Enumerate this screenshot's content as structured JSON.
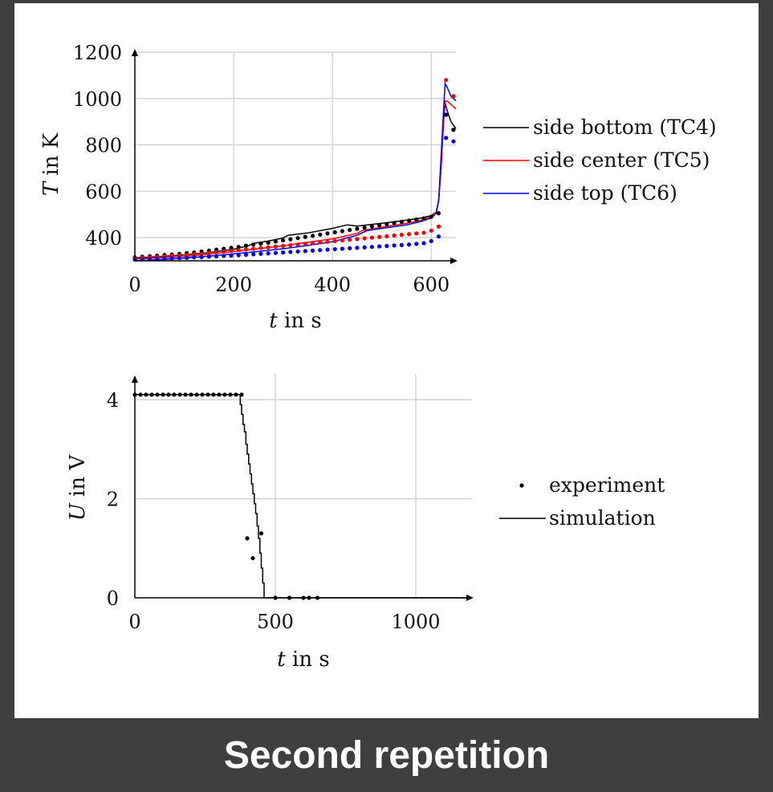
{
  "caption": "Second repetition",
  "chart_data": [
    {
      "type": "line",
      "xlabel_var": "t",
      "xlabel_rest": " in s",
      "ylabel_var": "T",
      "ylabel_rest": " in K",
      "xlim": [
        0,
        650
      ],
      "ylim": [
        300,
        1200
      ],
      "xticks": [
        0,
        200,
        400,
        600
      ],
      "yticks": [
        400,
        600,
        800,
        1000,
        1200
      ],
      "grid": true,
      "legend_position": "right",
      "series": [
        {
          "name": "side bottom (TC4)",
          "color": "#000000",
          "x": [
            0,
            50,
            100,
            150,
            200,
            230,
            240,
            270,
            300,
            310,
            350,
            400,
            430,
            450,
            500,
            550,
            580,
            600,
            610,
            615,
            620,
            625,
            628,
            632,
            640,
            650
          ],
          "y": [
            312,
            318,
            325,
            335,
            350,
            365,
            375,
            385,
            398,
            410,
            420,
            440,
            455,
            450,
            462,
            475,
            485,
            495,
            510,
            560,
            700,
            900,
            980,
            950,
            900,
            870
          ]
        },
        {
          "name": "side center (TC5)",
          "color": "#ff0000",
          "x": [
            0,
            50,
            100,
            150,
            200,
            250,
            300,
            350,
            400,
            450,
            460,
            500,
            550,
            580,
            600,
            610,
            615,
            620,
            625,
            628,
            632,
            640,
            650
          ],
          "y": [
            308,
            312,
            318,
            328,
            340,
            352,
            365,
            380,
            395,
            418,
            430,
            445,
            462,
            475,
            490,
            510,
            560,
            700,
            900,
            990,
            990,
            975,
            955
          ]
        },
        {
          "name": "side top (TC6)",
          "color": "#0000ff",
          "x": [
            0,
            50,
            100,
            150,
            200,
            250,
            300,
            350,
            400,
            450,
            470,
            500,
            550,
            580,
            600,
            610,
            615,
            620,
            625,
            628,
            632,
            640,
            650
          ],
          "y": [
            300,
            305,
            311,
            320,
            330,
            340,
            352,
            366,
            382,
            410,
            430,
            440,
            455,
            470,
            485,
            505,
            560,
            750,
            950,
            1065,
            1050,
            1010,
            990
          ]
        }
      ],
      "points": [
        {
          "name": "side bottom (TC4)",
          "color": "#000000",
          "x": [
            0,
            15,
            30,
            45,
            60,
            75,
            90,
            105,
            120,
            135,
            150,
            165,
            180,
            195,
            210,
            225,
            240,
            255,
            270,
            285,
            300,
            315,
            330,
            345,
            360,
            375,
            390,
            405,
            420,
            435,
            450,
            465,
            480,
            495,
            510,
            525,
            540,
            555,
            570,
            585,
            600,
            615,
            630,
            645
          ],
          "y": [
            315,
            318,
            320,
            322,
            325,
            327,
            330,
            333,
            336,
            340,
            344,
            348,
            352,
            356,
            360,
            365,
            370,
            374,
            378,
            383,
            388,
            393,
            398,
            403,
            408,
            413,
            418,
            423,
            428,
            433,
            438,
            443,
            448,
            453,
            458,
            463,
            468,
            473,
            478,
            483,
            490,
            505,
            930,
            865
          ]
        },
        {
          "name": "side center (TC5)",
          "color": "#ff0000",
          "x": [
            0,
            15,
            30,
            45,
            60,
            75,
            90,
            105,
            120,
            135,
            150,
            165,
            180,
            195,
            210,
            225,
            240,
            255,
            270,
            285,
            300,
            315,
            330,
            345,
            360,
            375,
            390,
            405,
            420,
            435,
            450,
            465,
            480,
            495,
            510,
            525,
            540,
            555,
            570,
            585,
            600,
            615,
            630,
            645
          ],
          "y": [
            312,
            314,
            316,
            318,
            320,
            322,
            324,
            326,
            328,
            331,
            334,
            337,
            340,
            343,
            346,
            349,
            352,
            355,
            358,
            361,
            364,
            367,
            370,
            373,
            376,
            379,
            382,
            385,
            388,
            391,
            394,
            397,
            400,
            403,
            406,
            409,
            412,
            415,
            418,
            421,
            430,
            448,
            1080,
            1010
          ]
        },
        {
          "name": "side top (TC6)",
          "color": "#0000ff",
          "x": [
            0,
            15,
            30,
            45,
            60,
            75,
            90,
            105,
            120,
            135,
            150,
            165,
            180,
            195,
            210,
            225,
            240,
            255,
            270,
            285,
            300,
            315,
            330,
            345,
            360,
            375,
            390,
            405,
            420,
            435,
            450,
            465,
            480,
            495,
            510,
            525,
            540,
            555,
            570,
            585,
            600,
            615,
            630,
            645
          ],
          "y": [
            305,
            306,
            307,
            308,
            310,
            311,
            312,
            313,
            315,
            316,
            318,
            319,
            321,
            322,
            324,
            326,
            328,
            330,
            332,
            334,
            336,
            338,
            340,
            342,
            344,
            346,
            348,
            350,
            352,
            354,
            356,
            358,
            360,
            362,
            364,
            366,
            368,
            370,
            373,
            376,
            385,
            405,
            830,
            815
          ]
        }
      ]
    },
    {
      "type": "line",
      "xlabel_var": "t",
      "xlabel_rest": " in s",
      "ylabel_var": "U",
      "ylabel_rest": " in V",
      "xlim": [
        0,
        1200
      ],
      "ylim": [
        0,
        4.2
      ],
      "xticks": [
        0,
        500,
        1000
      ],
      "yticks": [
        0,
        2,
        4
      ],
      "grid": true,
      "legend_position": "right",
      "experiment": {
        "name": "experiment",
        "x": [
          0,
          20,
          40,
          60,
          80,
          100,
          120,
          140,
          160,
          180,
          200,
          220,
          240,
          260,
          280,
          300,
          320,
          340,
          360,
          380,
          400,
          420,
          450,
          500,
          550,
          600,
          620,
          650
        ],
        "y": [
          4.1,
          4.1,
          4.1,
          4.1,
          4.1,
          4.1,
          4.1,
          4.1,
          4.1,
          4.1,
          4.1,
          4.1,
          4.1,
          4.1,
          4.1,
          4.1,
          4.1,
          4.1,
          4.1,
          4.1,
          1.2,
          0.8,
          1.3,
          0.0,
          0.0,
          0.0,
          0.0,
          0.0
        ]
      },
      "simulation": {
        "name": "simulation",
        "x": [
          0,
          370,
          375,
          380,
          385,
          390,
          395,
          400,
          405,
          410,
          415,
          420,
          425,
          430,
          435,
          440,
          445,
          450,
          455,
          460,
          1200
        ],
        "y": [
          4.1,
          4.1,
          3.9,
          3.7,
          3.5,
          3.35,
          3.1,
          2.9,
          2.7,
          2.5,
          2.3,
          2.1,
          1.9,
          1.7,
          1.45,
          1.2,
          0.9,
          0.6,
          0.3,
          0.0,
          0.0
        ]
      }
    }
  ]
}
